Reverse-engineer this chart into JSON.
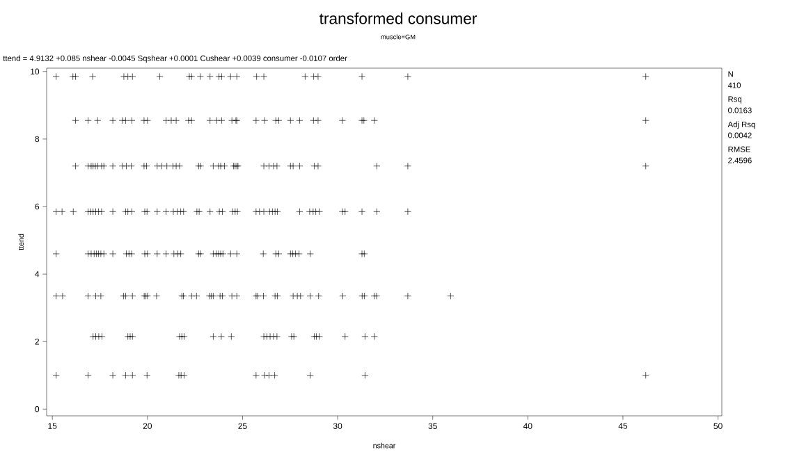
{
  "chart_data": {
    "type": "scatter",
    "title": "transformed consumer",
    "subtitle": "muscle=GM",
    "xlabel": "nshear",
    "ylabel": "ttend",
    "annotations": [
      "ttend = 4.9132 +0.085 nshear -0.0045 Sqshear +0.0001 Cushear +0.0039 consumer -0.0107 order",
      "N",
      "410",
      "Rsq",
      "0.0163",
      "Adj Rsq",
      "0.0042",
      "RMSE",
      "2.4596"
    ],
    "xlim": [
      14.7,
      50.2
    ],
    "ylim": [
      -0.2,
      10.1
    ],
    "xticks": [
      15,
      20,
      25,
      30,
      35,
      40,
      45,
      50
    ],
    "yticks": [
      0,
      2,
      4,
      6,
      8,
      10
    ],
    "marker": "cross",
    "series": [
      {
        "color": "#000000",
        "x": [
          15.2,
          16.08,
          16.22,
          17.12,
          18.76,
          18.97,
          19.21,
          20.65,
          22.2,
          22.32,
          22.78,
          23.29,
          23.76,
          23.9,
          24.37,
          24.7,
          25.74,
          26.12,
          28.29,
          28.74,
          28.97,
          31.28,
          33.69,
          46.2,
          16.22,
          16.88,
          17.38,
          18.18,
          18.68,
          18.85,
          19.18,
          19.82,
          20.0,
          20.98,
          21.25,
          21.51,
          22.16,
          22.32,
          23.29,
          23.64,
          23.9,
          24.44,
          24.65,
          24.7,
          25.71,
          26.16,
          26.75,
          26.9,
          27.52,
          28.0,
          28.73,
          28.97,
          30.25,
          31.28,
          31.38,
          31.93,
          46.2,
          16.22,
          16.88,
          17.04,
          17.14,
          17.26,
          17.38,
          17.59,
          17.71,
          18.18,
          18.68,
          18.89,
          19.15,
          19.82,
          19.95,
          20.51,
          20.74,
          21.02,
          21.34,
          21.51,
          21.69,
          22.69,
          22.79,
          23.46,
          23.74,
          23.85,
          24.05,
          24.53,
          24.61,
          24.7,
          24.76,
          26.12,
          26.39,
          26.63,
          26.81,
          27.52,
          27.66,
          28.0,
          28.77,
          28.97,
          32.06,
          33.69,
          46.2,
          15.2,
          15.51,
          16.1,
          16.88,
          17.02,
          17.14,
          17.28,
          17.43,
          17.59,
          18.18,
          18.85,
          18.97,
          19.18,
          19.86,
          19.98,
          20.51,
          20.98,
          21.36,
          21.57,
          21.75,
          21.9,
          22.6,
          22.72,
          23.29,
          23.78,
          23.94,
          24.47,
          24.61,
          24.73,
          25.71,
          25.89,
          26.12,
          26.42,
          26.57,
          26.71,
          26.83,
          28.0,
          28.53,
          28.71,
          28.85,
          29.04,
          30.25,
          30.39,
          31.28,
          32.06,
          33.69,
          15.2,
          16.88,
          17.04,
          17.2,
          17.32,
          17.43,
          17.55,
          17.71,
          18.18,
          18.89,
          19.03,
          19.17,
          19.86,
          20.0,
          20.51,
          20.98,
          21.39,
          21.6,
          21.75,
          22.69,
          22.79,
          23.46,
          23.62,
          23.74,
          23.85,
          23.97,
          24.37,
          24.7,
          26.09,
          26.75,
          26.9,
          27.52,
          27.64,
          27.78,
          27.97,
          28.56,
          31.28,
          31.4,
          15.2,
          15.54,
          16.88,
          17.28,
          17.55,
          18.74,
          18.85,
          19.21,
          19.83,
          19.92,
          20.0,
          20.48,
          21.81,
          21.89,
          22.32,
          22.58,
          23.26,
          23.35,
          23.46,
          23.82,
          23.94,
          24.44,
          24.7,
          25.71,
          25.79,
          26.1,
          26.71,
          26.83,
          27.66,
          27.88,
          28.05,
          28.56,
          29.0,
          30.27,
          31.29,
          31.41,
          31.93,
          32.05,
          33.69,
          35.94,
          17.14,
          17.28,
          17.44,
          17.61,
          18.97,
          19.09,
          19.21,
          21.69,
          21.81,
          21.93,
          23.46,
          23.88,
          24.41,
          26.12,
          26.28,
          26.45,
          26.63,
          26.81,
          27.58,
          27.7,
          28.77,
          28.88,
          29.04,
          30.39,
          31.44,
          31.93,
          15.2,
          16.88,
          18.18,
          18.85,
          19.21,
          19.98,
          21.65,
          21.77,
          21.93,
          25.71,
          26.16,
          26.39,
          26.69,
          28.56,
          31.44,
          46.2
        ],
        "values": [
          9.85,
          9.85,
          9.85,
          9.85,
          9.85,
          9.85,
          9.85,
          9.85,
          9.85,
          9.85,
          9.85,
          9.85,
          9.85,
          9.85,
          9.85,
          9.85,
          9.85,
          9.85,
          9.85,
          9.85,
          9.85,
          9.85,
          9.85,
          9.85,
          8.55,
          8.55,
          8.55,
          8.55,
          8.55,
          8.55,
          8.55,
          8.55,
          8.55,
          8.55,
          8.55,
          8.55,
          8.55,
          8.55,
          8.55,
          8.55,
          8.55,
          8.55,
          8.55,
          8.55,
          8.55,
          8.55,
          8.55,
          8.55,
          8.55,
          8.55,
          8.55,
          8.55,
          8.55,
          8.55,
          8.55,
          8.55,
          8.55,
          7.2,
          7.2,
          7.2,
          7.2,
          7.2,
          7.2,
          7.2,
          7.2,
          7.2,
          7.2,
          7.2,
          7.2,
          7.2,
          7.2,
          7.2,
          7.2,
          7.2,
          7.2,
          7.2,
          7.2,
          7.2,
          7.2,
          7.2,
          7.2,
          7.2,
          7.2,
          7.2,
          7.2,
          7.2,
          7.2,
          7.2,
          7.2,
          7.2,
          7.2,
          7.2,
          7.2,
          7.2,
          7.2,
          7.2,
          7.2,
          7.2,
          7.2,
          5.85,
          5.85,
          5.85,
          5.85,
          5.85,
          5.85,
          5.85,
          5.85,
          5.85,
          5.85,
          5.85,
          5.85,
          5.85,
          5.85,
          5.85,
          5.85,
          5.85,
          5.85,
          5.85,
          5.85,
          5.85,
          5.85,
          5.85,
          5.85,
          5.85,
          5.85,
          5.85,
          5.85,
          5.85,
          5.85,
          5.85,
          5.85,
          5.85,
          5.85,
          5.85,
          5.85,
          5.85,
          5.85,
          5.85,
          5.85,
          5.85,
          5.85,
          5.85,
          5.85,
          5.85,
          5.85,
          4.6,
          4.6,
          4.6,
          4.6,
          4.6,
          4.6,
          4.6,
          4.6,
          4.6,
          4.6,
          4.6,
          4.6,
          4.6,
          4.6,
          4.6,
          4.6,
          4.6,
          4.6,
          4.6,
          4.6,
          4.6,
          4.6,
          4.6,
          4.6,
          4.6,
          4.6,
          4.6,
          4.6,
          4.6,
          4.6,
          4.6,
          4.6,
          4.6,
          4.6,
          4.6,
          4.6,
          4.6,
          4.6,
          3.35,
          3.35,
          3.35,
          3.35,
          3.35,
          3.35,
          3.35,
          3.35,
          3.35,
          3.35,
          3.35,
          3.35,
          3.35,
          3.35,
          3.35,
          3.35,
          3.35,
          3.35,
          3.35,
          3.35,
          3.35,
          3.35,
          3.35,
          3.35,
          3.35,
          3.35,
          3.35,
          3.35,
          3.35,
          3.35,
          3.35,
          3.35,
          3.35,
          3.35,
          3.35,
          3.35,
          3.35,
          3.35,
          3.35,
          3.35,
          2.15,
          2.15,
          2.15,
          2.15,
          2.15,
          2.15,
          2.15,
          2.15,
          2.15,
          2.15,
          2.15,
          2.15,
          2.15,
          2.15,
          2.15,
          2.15,
          2.15,
          2.15,
          2.15,
          2.15,
          2.15,
          2.15,
          2.15,
          2.15,
          2.15,
          2.15,
          1.0,
          1.0,
          1.0,
          1.0,
          1.0,
          1.0,
          1.0,
          1.0,
          1.0,
          1.0,
          1.0,
          1.0,
          1.0,
          1.0,
          1.0,
          1.0
        ]
      }
    ]
  }
}
